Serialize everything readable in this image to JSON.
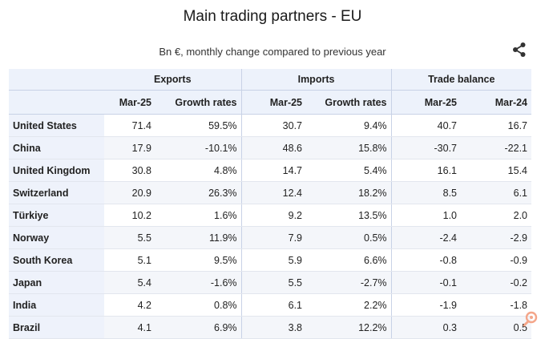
{
  "title": "Main trading partners - EU",
  "subtitle": "Bn €, monthly change compared to previous year",
  "share_icon": "share-icon",
  "table": {
    "groups": [
      "Exports",
      "Imports",
      "Trade balance"
    ],
    "columns": [
      "Mar-25",
      "Growth rates",
      "Mar-25",
      "Growth rates",
      "Mar-25",
      "Mar-24"
    ],
    "rows": [
      {
        "name": "United States",
        "cells": [
          "71.4",
          "59.5%",
          "30.7",
          "9.4%",
          "40.7",
          "16.7"
        ]
      },
      {
        "name": "China",
        "cells": [
          "17.9",
          "-10.1%",
          "48.6",
          "15.8%",
          "-30.7",
          "-22.1"
        ]
      },
      {
        "name": "United Kingdom",
        "cells": [
          "30.8",
          "4.8%",
          "14.7",
          "5.4%",
          "16.1",
          "15.4"
        ]
      },
      {
        "name": "Switzerland",
        "cells": [
          "20.9",
          "26.3%",
          "12.4",
          "18.2%",
          "8.5",
          "6.1"
        ]
      },
      {
        "name": "Türkiye",
        "cells": [
          "10.2",
          "1.6%",
          "9.2",
          "13.5%",
          "1.0",
          "2.0"
        ]
      },
      {
        "name": "Norway",
        "cells": [
          "5.5",
          "11.9%",
          "7.9",
          "0.5%",
          "-2.4",
          "-2.9"
        ]
      },
      {
        "name": "South Korea",
        "cells": [
          "5.1",
          "9.5%",
          "5.9",
          "6.6%",
          "-0.8",
          "-0.9"
        ]
      },
      {
        "name": "Japan",
        "cells": [
          "5.4",
          "-1.6%",
          "5.5",
          "-2.7%",
          "-0.1",
          "-0.2"
        ]
      },
      {
        "name": "India",
        "cells": [
          "4.2",
          "0.8%",
          "6.1",
          "2.2%",
          "-1.9",
          "-1.8"
        ]
      },
      {
        "name": "Brazil",
        "cells": [
          "4.1",
          "6.9%",
          "3.8",
          "12.2%",
          "0.3",
          "0.5"
        ]
      }
    ]
  },
  "colors": {
    "header_bg": "#edf2fb",
    "row_stripe": "#f4f6fa",
    "watermark": "#f4a68a"
  },
  "watermark_icon": "wrench-gear-icon"
}
